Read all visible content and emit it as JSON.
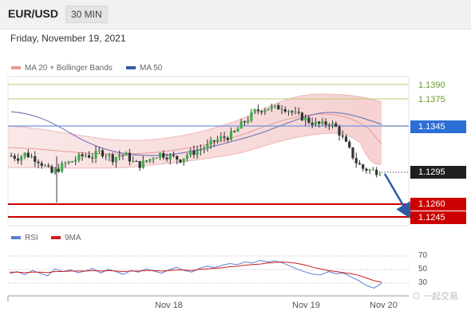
{
  "header": {
    "pair": "EUR/USD",
    "timeframe": "30 MIN"
  },
  "date": "Friday, November 19, 2021",
  "legend": {
    "bollinger": "MA 20 + Bollinger Bands",
    "ma50": "MA 50",
    "rsi": "RSI",
    "ma9": "9MA"
  },
  "colors": {
    "bollinger": "#e99999",
    "ma50": "#2f5aa8",
    "rsi": "#5a7fd1",
    "ma9": "#cc2020",
    "support": "#cc0000",
    "resistance_blue": "#2b6fd6",
    "target_green": "#6a9a2a",
    "arrow": "#2f5aa8"
  },
  "watermark": "一起交易",
  "chart_data": [
    {
      "type": "line",
      "title": "EUR/USD 30 MIN",
      "x_ticks": [
        "Nov 18",
        "Nov 19",
        "Nov 20"
      ],
      "levels": [
        {
          "price": "1.1390",
          "style": "target"
        },
        {
          "price": "1.1375",
          "style": "target"
        },
        {
          "price": "1.1345",
          "style": "resistance"
        },
        {
          "price": "1.1295",
          "style": "current"
        },
        {
          "price": "1.1260",
          "style": "support"
        },
        {
          "price": "1.1245",
          "style": "support"
        }
      ],
      "series": [
        {
          "name": "MA 20 + Bollinger Bands"
        },
        {
          "name": "MA 50"
        }
      ],
      "close_path": [
        1.1312,
        1.131,
        1.1314,
        1.1311,
        1.1307,
        1.13,
        1.1293,
        1.1298,
        1.1303,
        1.1306,
        1.131,
        1.1313,
        1.1311,
        1.1316,
        1.1314,
        1.1309,
        1.1313,
        1.1312,
        1.1305,
        1.1302,
        1.1306,
        1.1311,
        1.1314,
        1.1312,
        1.131,
        1.1308,
        1.1313,
        1.1316,
        1.1319,
        1.1322,
        1.1328,
        1.1331,
        1.1333,
        1.1337,
        1.1346,
        1.1353,
        1.136,
        1.1363,
        1.1365,
        1.1364,
        1.1366,
        1.1362,
        1.1357,
        1.1354,
        1.135,
        1.1347,
        1.1346,
        1.1348,
        1.1343,
        1.1331,
        1.1318,
        1.1305,
        1.1298,
        1.1296,
        1.1295
      ]
    },
    {
      "type": "line",
      "series": [
        {
          "name": "RSI"
        },
        {
          "name": "9MA"
        }
      ],
      "y_ticks": [
        70,
        50,
        30
      ],
      "ylim": [
        0,
        100
      ],
      "x_ticks": [
        "Nov 18",
        "Nov 19",
        "Nov 20"
      ],
      "rsi": [
        46,
        50,
        44,
        52,
        47,
        42,
        55,
        50,
        53,
        48,
        51,
        56,
        47,
        54,
        50,
        45,
        52,
        49,
        55,
        51,
        47,
        53,
        58,
        52,
        49,
        56,
        60,
        57,
        62,
        65,
        63,
        68,
        66,
        71,
        68,
        70,
        66,
        60,
        54,
        49,
        45,
        44,
        50,
        46,
        47,
        40,
        33,
        24,
        19,
        28
      ],
      "ma9": [
        49,
        49,
        48,
        49,
        49,
        48,
        50,
        50,
        51,
        51,
        51,
        52,
        51,
        52,
        51,
        50,
        51,
        51,
        52,
        52,
        51,
        52,
        53,
        53,
        52,
        54,
        55,
        56,
        57,
        59,
        60,
        62,
        63,
        64,
        66,
        67,
        68,
        67,
        65,
        62,
        58,
        55,
        52,
        50,
        48,
        46,
        43,
        38,
        33,
        30
      ]
    }
  ]
}
